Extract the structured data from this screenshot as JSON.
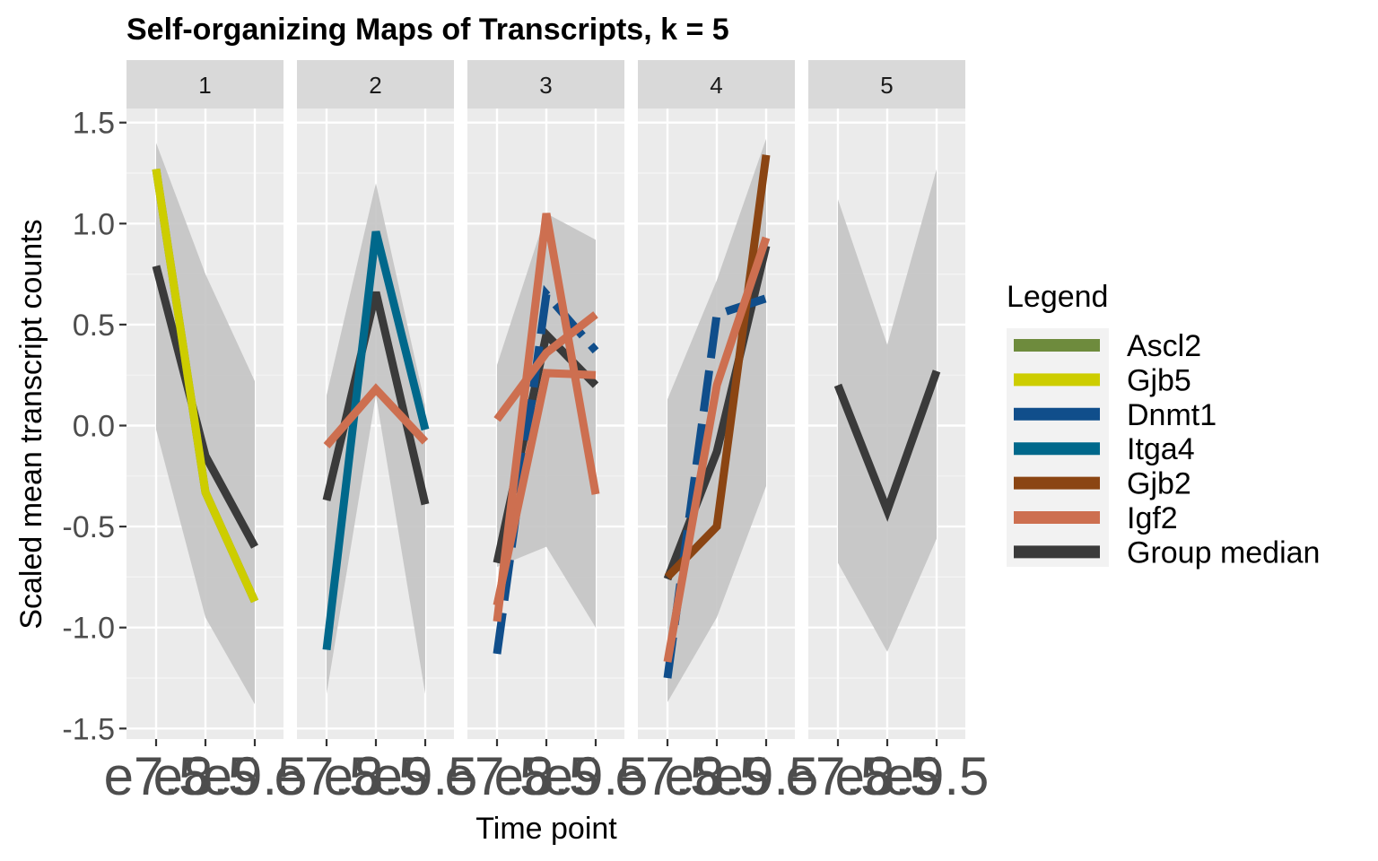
{
  "chart_data": {
    "type": "line",
    "title": "Self-organizing Maps of Transcripts, k = 5",
    "xlabel": "Time point",
    "ylabel": "Scaled mean transcript counts",
    "x": [
      "e7.5",
      "e8.5",
      "e9.5"
    ],
    "ylim": [
      -1.55,
      1.55
    ],
    "yticks": [
      1.5,
      1.0,
      0.5,
      0.0,
      -0.5,
      -1.0,
      -1.5
    ],
    "ytick_labels": [
      "1.5",
      "1.0",
      "0.5",
      "0.0",
      "-0.5",
      "-1.0",
      "-1.5"
    ],
    "grid": true,
    "legend_position": "right",
    "legend": {
      "title": "Legend",
      "entries": [
        {
          "name": "Ascl2",
          "color": "#6e8b3d"
        },
        {
          "name": "Gjb5",
          "color": "#cdcd00"
        },
        {
          "name": "Dnmt1",
          "color": "#104e8b"
        },
        {
          "name": "Itga4",
          "color": "#00688b"
        },
        {
          "name": "Gjb2",
          "color": "#8b4513"
        },
        {
          "name": "Igf2",
          "color": "#cd6f50"
        },
        {
          "name": "Group median",
          "color": "#3a3a3a"
        }
      ]
    },
    "panels": [
      {
        "label": "1",
        "band": {
          "low": [
            -0.02,
            -0.95,
            -1.38
          ],
          "high": [
            1.4,
            0.75,
            0.22
          ]
        },
        "series": [
          {
            "name": "Group median",
            "values": [
              0.79,
              -0.15,
              -0.6
            ]
          },
          {
            "name": "Ascl2",
            "values": [
              1.27,
              -0.33,
              -0.87
            ]
          },
          {
            "name": "Gjb5",
            "values": [
              1.27,
              -0.33,
              -0.87
            ]
          }
        ]
      },
      {
        "label": "2",
        "band": {
          "low": [
            -1.33,
            0.15,
            -1.33
          ],
          "high": [
            0.15,
            1.2,
            0.1
          ]
        },
        "series": [
          {
            "name": "Group median",
            "values": [
              -0.37,
              0.66,
              -0.39
            ]
          },
          {
            "name": "Itga4",
            "values": [
              -1.11,
              0.96,
              -0.02
            ]
          },
          {
            "name": "Igf2",
            "values": [
              -0.1,
              0.18,
              -0.08
            ]
          }
        ]
      },
      {
        "label": "3",
        "band": {
          "low": [
            -0.7,
            -0.6,
            -1.0
          ],
          "high": [
            0.3,
            1.05,
            0.92
          ]
        },
        "series": [
          {
            "name": "Group median",
            "values": [
              -0.68,
              0.45,
              0.2
            ]
          },
          {
            "name": "Dnmt1",
            "values": [
              -1.13,
              0.65,
              0.37
            ]
          },
          {
            "name": "Igf2",
            "values": [
              0.03,
              0.36,
              0.55
            ]
          },
          {
            "name": "Igf2",
            "values": [
              -0.89,
              0.26,
              0.25
            ]
          },
          {
            "name": "Igf2",
            "values": [
              -0.97,
              1.05,
              -0.34
            ]
          }
        ]
      },
      {
        "label": "4",
        "band": {
          "low": [
            -1.37,
            -0.95,
            -0.3
          ],
          "high": [
            0.13,
            0.72,
            1.42
          ]
        },
        "series": [
          {
            "name": "Group median",
            "values": [
              -0.76,
              -0.13,
              0.89
            ]
          },
          {
            "name": "Dnmt1",
            "values": [
              -1.25,
              0.55,
              0.63
            ]
          },
          {
            "name": "Gjb2",
            "values": [
              -0.75,
              -0.5,
              1.34
            ]
          },
          {
            "name": "Igf2",
            "values": [
              -1.17,
              0.2,
              0.93
            ]
          }
        ]
      },
      {
        "label": "5",
        "band": {
          "low": [
            -0.68,
            -1.12,
            -0.56
          ],
          "high": [
            1.12,
            0.4,
            1.27
          ]
        },
        "series": [
          {
            "name": "Group median",
            "values": [
              0.2,
              -0.42,
              0.27
            ]
          }
        ]
      }
    ]
  }
}
